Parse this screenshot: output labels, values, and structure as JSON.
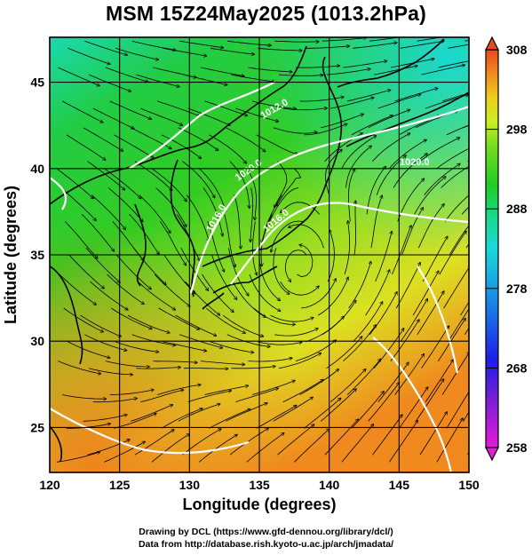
{
  "title": "MSM 15Z24May2025 (1013.2hPa)",
  "map": {
    "xlabel": "Longitude (degrees)",
    "ylabel": "Latitude  (degrees)",
    "xlim": [
      120,
      150
    ],
    "ylim": [
      22.4,
      47.6
    ],
    "x_ticks": [
      "120",
      "125",
      "130",
      "135",
      "140",
      "145",
      "150"
    ],
    "y_ticks": [
      "25",
      "30",
      "35",
      "40",
      "45"
    ],
    "grid": "on (5 degree lines)",
    "field": "potential temperature shading with wind streamlines and white pressure contours",
    "contour_labels": [
      "1012.0",
      "1016.0",
      "1020.0",
      "1020.0",
      "1016.0"
    ]
  },
  "colorbar": {
    "min": 258,
    "max": 308,
    "labels": [
      "308",
      "298",
      "288",
      "278",
      "268",
      "258"
    ],
    "colors": [
      "#e61ad9",
      "#7a1fd6",
      "#1e1ee6",
      "#1a8fe6",
      "#1ad9d9",
      "#19d98a",
      "#22cc22",
      "#77dd22",
      "#ccee22",
      "#f0cc1e",
      "#f08a1e",
      "#e64a1e"
    ]
  },
  "credits": {
    "line1": "Drawing by DCL (https://www.gfd-dennou.org/library/dcl/)",
    "line2": "Data from http://database.rish.kyoto-u.ac.jp/arch/jmadata/"
  }
}
